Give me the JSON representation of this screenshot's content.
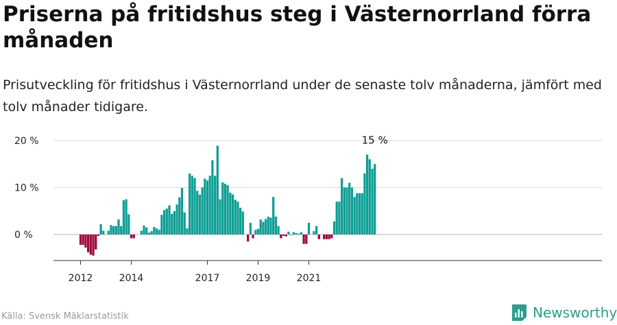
{
  "title": "Priserna på fritidshus steg i Västernorrland förra månaden",
  "subtitle": "Prisutveckling för fritidshus i Västernorrland under de senaste tolv månaderna, jämfört med tolv månader tidigare.",
  "source": "Källa: Svensk Mäklarstatistik",
  "brand": "Newsworthy",
  "colors": {
    "positive": "#0e9e94",
    "negative": "#a0073d",
    "grid": "#d7d7d7",
    "brand": "#2a9d8f"
  },
  "chart_data": {
    "type": "bar",
    "start": "2011-11",
    "ylim": [
      -5,
      20
    ],
    "yticks": [
      0,
      10,
      20
    ],
    "ytick_labels": [
      "0 %",
      "10 %",
      "20 %"
    ],
    "xtick_labels": [
      "2012",
      "2014",
      "2017",
      "2019",
      "2021"
    ],
    "last_label": "15 %",
    "values": [
      -2.2,
      -2.2,
      -2.8,
      -3.8,
      -4.3,
      -4.5,
      -3.2,
      -0.3,
      2.2,
      0.8,
      0.0,
      0.8,
      2.0,
      1.8,
      1.8,
      3.2,
      1.8,
      7.3,
      7.5,
      4.3,
      -0.8,
      -0.8,
      0.0,
      0.0,
      0.8,
      1.9,
      1.5,
      0.4,
      0.7,
      1.6,
      1.3,
      1.0,
      4.2,
      5.2,
      5.5,
      6.2,
      4.4,
      5.0,
      6.4,
      7.9,
      9.9,
      4.7,
      1.3,
      13.0,
      12.5,
      12.0,
      9.3,
      8.5,
      10.0,
      11.9,
      11.5,
      12.5,
      15.8,
      12.5,
      18.9,
      7.5,
      11.1,
      10.8,
      10.5,
      8.9,
      8.5,
      7.4,
      7.0,
      5.7,
      4.9,
      0.0,
      -1.5,
      2.5,
      -0.8,
      1.0,
      1.2,
      3.2,
      2.7,
      3.3,
      3.8,
      3.6,
      8.0,
      3.8,
      1.8,
      -0.8,
      -0.3,
      -0.4,
      0.6,
      -0.1,
      0.5,
      0.3,
      0.2,
      0.5,
      -2.0,
      -2.0,
      2.5,
      0.0,
      0.7,
      1.8,
      -1.0,
      0.0,
      -1.0,
      -1.0,
      -1.0,
      -0.8,
      2.8,
      7.0,
      7.0,
      12.0,
      10.0,
      10.0,
      11.0,
      10.0,
      8.0,
      8.8,
      8.8,
      8.8,
      13.0,
      17.0,
      16.0,
      14.0,
      15.0
    ]
  }
}
